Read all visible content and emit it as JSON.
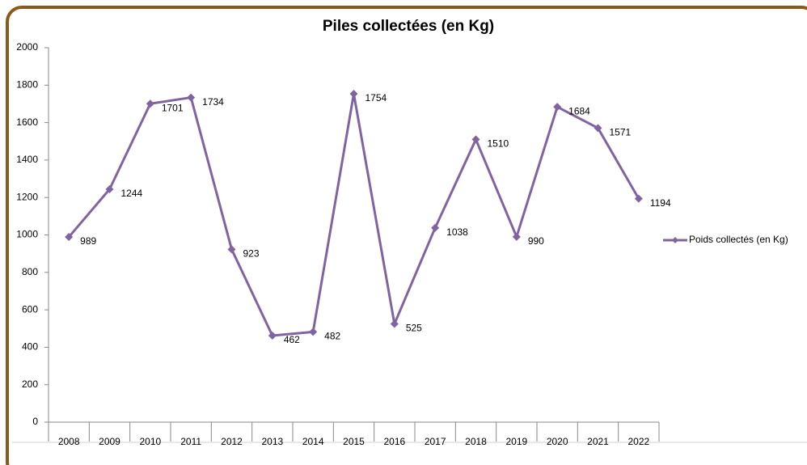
{
  "chart_data": {
    "type": "line",
    "title": "Piles collectées (en Kg)",
    "categories": [
      "2008",
      "2009",
      "2010",
      "2011",
      "2012",
      "2013",
      "2014",
      "2015",
      "2016",
      "2017",
      "2018",
      "2019",
      "2020",
      "2021",
      "2022"
    ],
    "series": [
      {
        "name": "Poids collectés (en Kg)",
        "color": "#8064a2",
        "values": [
          989,
          1244,
          1701,
          1734,
          923,
          462,
          482,
          1754,
          525,
          1038,
          1510,
          990,
          1684,
          1571,
          1194
        ]
      }
    ],
    "ylim": [
      0,
      2000
    ],
    "yticks": [
      0,
      200,
      400,
      600,
      800,
      1000,
      1200,
      1400,
      1600,
      1800,
      2000
    ],
    "legend": "right"
  }
}
